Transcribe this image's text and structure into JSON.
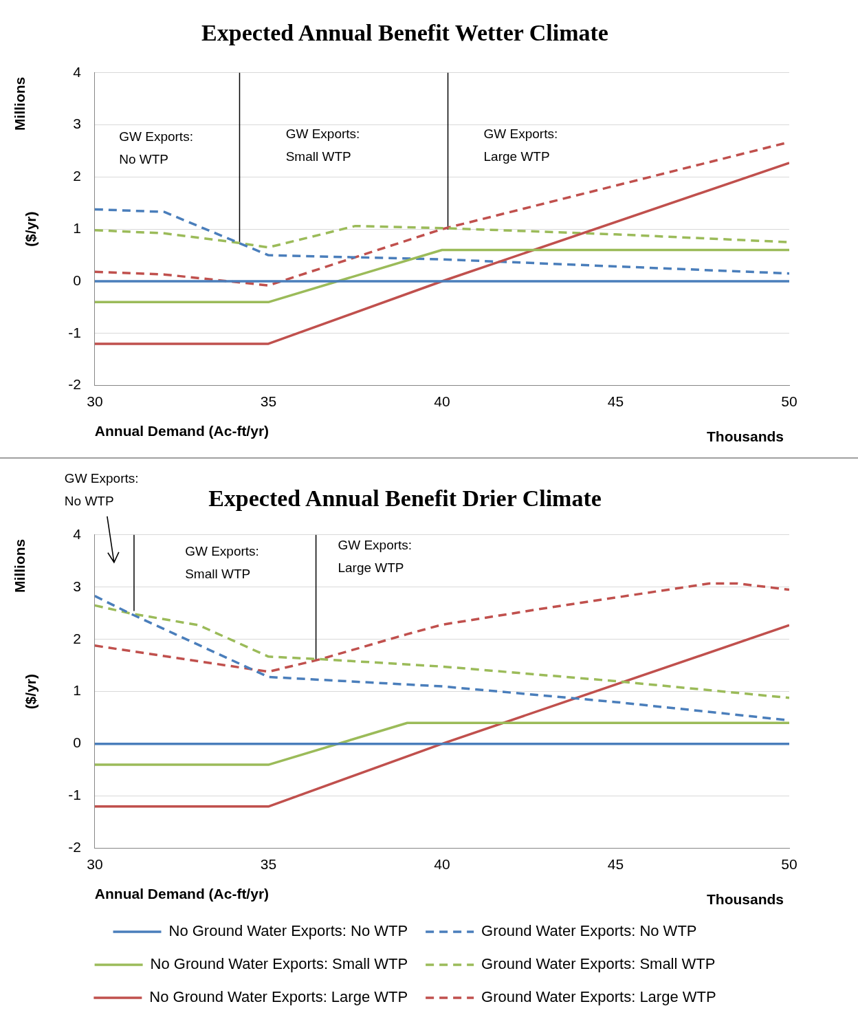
{
  "chart_data": [
    {
      "type": "line",
      "title": "Expected Annual Benefit Wetter Climate",
      "xlabel": "Annual Demand (Ac-ft/yr)",
      "ylabel": "($/yr)",
      "xlim": [
        30,
        50
      ],
      "xticks": [
        30,
        35,
        40,
        45,
        50
      ],
      "ylim": [
        -2,
        4
      ],
      "yticks": [
        -2,
        -1,
        0,
        1,
        2,
        3,
        4
      ],
      "grid": "y",
      "legend": false,
      "marker": "none",
      "annotations": [
        "Millions",
        "Thousands",
        "GW Exports:\nNo WTP",
        "GW Exports:\nSmall WTP",
        "GW Exports:\nLarge WTP"
      ],
      "series": [
        {
          "color": "#4a7ebb",
          "x": [
            30,
            50
          ],
          "values": [
            0,
            0
          ]
        },
        {
          "color": "#9bbb59",
          "x": [
            30,
            35,
            40,
            50
          ],
          "values": [
            -0.4,
            -0.4,
            0.6,
            0.6
          ]
        },
        {
          "color": "#c0504d",
          "x": [
            30,
            35,
            40,
            50
          ],
          "values": [
            -1.2,
            -1.2,
            0,
            2.27
          ]
        },
        {
          "color": "#4a7ebb",
          "line_style": "dashed",
          "x": [
            30,
            32,
            35,
            40,
            50
          ],
          "values": [
            1.38,
            1.33,
            0.5,
            0.42,
            0.15
          ]
        },
        {
          "color": "#9bbb59",
          "line_style": "dashed",
          "x": [
            30,
            32,
            34,
            35,
            37.5,
            40,
            45,
            50
          ],
          "values": [
            0.98,
            0.92,
            0.75,
            0.65,
            1.06,
            1.02,
            0.9,
            0.75
          ]
        },
        {
          "color": "#c0504d",
          "line_style": "dashed",
          "x": [
            30,
            32,
            35,
            40,
            50
          ],
          "values": [
            0.18,
            0.13,
            -0.08,
            1.0,
            2.67
          ]
        },
        {
          "color": "#000000",
          "x": [
            34.17,
            34.17
          ],
          "values": [
            4,
            0.72
          ]
        },
        {
          "color": "#000000",
          "x": [
            40.17,
            40.17
          ],
          "values": [
            4,
            1.0
          ]
        }
      ]
    },
    {
      "type": "line",
      "title": "Expected Annual Benefit Drier Climate",
      "xlabel": "Annual Demand (Ac-ft/yr)",
      "ylabel": "($/yr)",
      "xlim": [
        30,
        50
      ],
      "xticks": [
        30,
        35,
        40,
        45,
        50
      ],
      "ylim": [
        -2,
        4
      ],
      "yticks": [
        -2,
        -1,
        0,
        1,
        2,
        3,
        4
      ],
      "grid": "y",
      "legend": "bottom",
      "marker": "none",
      "annotations": [
        "Millions",
        "Thousands",
        "GW Exports:\nNo WTP",
        "GW Exports:\nSmall WTP",
        "GW Exports:\nLarge WTP"
      ],
      "series": [
        {
          "name": "No Ground Water Exports: No WTP",
          "color": "#4a7ebb",
          "x": [
            30,
            50
          ],
          "values": [
            0,
            0
          ]
        },
        {
          "name": "Ground Water Exports: No WTP",
          "color": "#4a7ebb",
          "line_style": "dashed",
          "x": [
            30,
            31,
            35,
            40,
            45,
            50
          ],
          "values": [
            2.83,
            2.5,
            1.28,
            1.1,
            0.8,
            0.45
          ]
        },
        {
          "name": "No Ground Water Exports: Small WTP",
          "color": "#9bbb59",
          "x": [
            30,
            35,
            39,
            50
          ],
          "values": [
            -0.4,
            -0.4,
            0.4,
            0.4
          ]
        },
        {
          "name": "Ground Water Exports: Small WTP",
          "color": "#9bbb59",
          "line_style": "dashed",
          "x": [
            30,
            31,
            33,
            35,
            36.5,
            40,
            45,
            50
          ],
          "values": [
            2.65,
            2.5,
            2.27,
            1.67,
            1.62,
            1.48,
            1.2,
            0.88
          ]
        },
        {
          "name": "No Ground Water Exports: Large WTP",
          "color": "#c0504d",
          "x": [
            30,
            35,
            40,
            50
          ],
          "values": [
            -1.2,
            -1.2,
            0,
            2.27
          ]
        },
        {
          "name": "Ground Water Exports: Large WTP",
          "color": "#c0504d",
          "line_style": "dashed",
          "x": [
            30,
            35,
            36.5,
            39,
            40,
            43,
            47.7,
            48.5,
            50
          ],
          "values": [
            1.88,
            1.38,
            1.62,
            2.1,
            2.28,
            2.6,
            3.07,
            3.07,
            2.95
          ]
        },
        {
          "color": "#000000",
          "x": [
            31.13,
            31.13
          ],
          "values": [
            4,
            2.55
          ]
        },
        {
          "color": "#000000",
          "x": [
            36.37,
            36.37
          ],
          "values": [
            4,
            1.62
          ]
        }
      ]
    }
  ]
}
